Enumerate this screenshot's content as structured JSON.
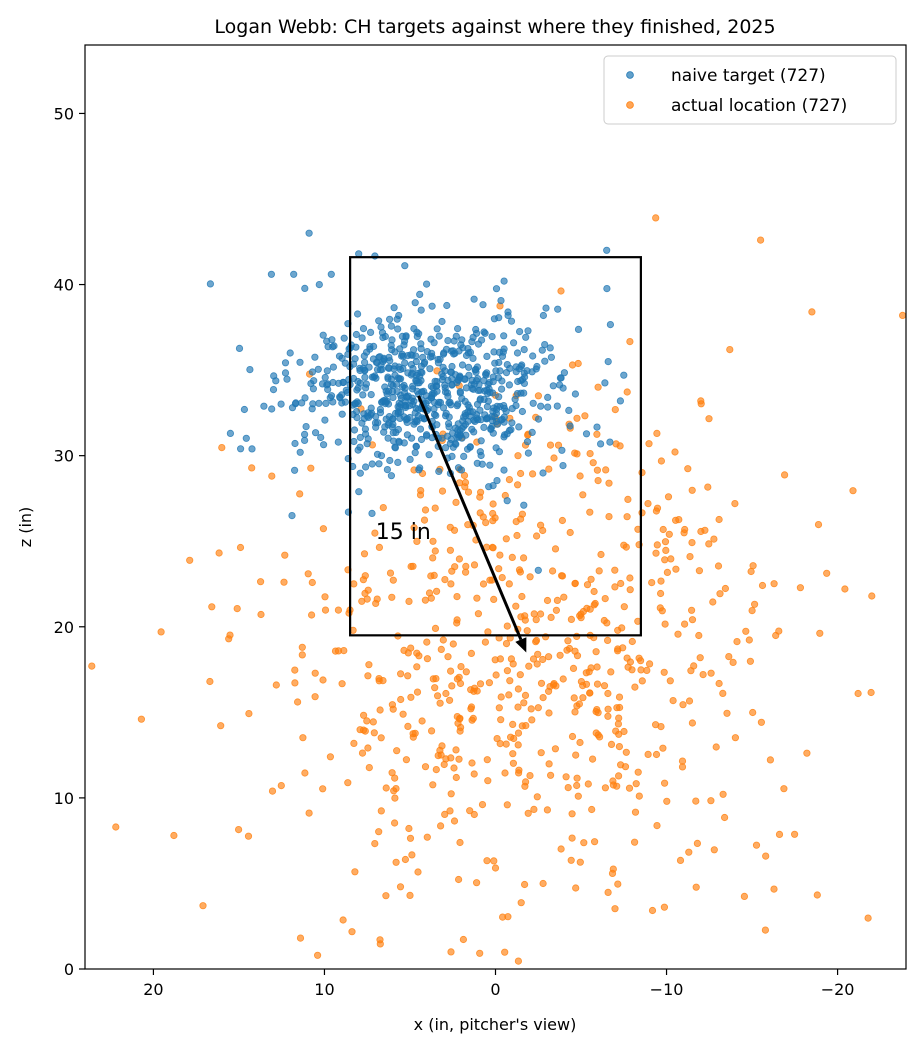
{
  "chart_data": {
    "type": "scatter",
    "title": "Logan Webb: CH targets against where they finished, 2025",
    "xlabel": "x (in, pitcher's view)",
    "ylabel": "z (in)",
    "xlim": [
      24,
      -24
    ],
    "ylim": [
      0,
      54
    ],
    "x_reversed": true,
    "xticks": [
      20,
      10,
      0,
      -10,
      -20
    ],
    "yticks": [
      0,
      10,
      20,
      30,
      40,
      50
    ],
    "xtick_labels": [
      "20",
      "10",
      "0",
      "−10",
      "−20"
    ],
    "ytick_labels": [
      "0",
      "10",
      "20",
      "30",
      "40",
      "50"
    ],
    "grid": false,
    "legend_position": "top-right",
    "strike_zone": {
      "x": [
        8.5,
        -8.5
      ],
      "z": [
        19.5,
        41.6
      ]
    },
    "arrow": {
      "from": [
        4.5,
        33.5
      ],
      "to": [
        -1.8,
        18.5
      ],
      "label": "15 in",
      "label_at": [
        7,
        25.6
      ]
    },
    "series": [
      {
        "name": "naive target (727)",
        "color": "#1f77b4",
        "n": 727,
        "distribution": {
          "x_mean": 4.0,
          "x_sd": 3.8,
          "z_mean": 33.8,
          "z_sd": 2.3
        },
        "points_sample": [
          [
            10.9,
            43.0
          ],
          [
            8.0,
            41.8
          ],
          [
            -6.5,
            42.0
          ],
          [
            13.1,
            40.6
          ],
          [
            11.8,
            40.6
          ],
          [
            10.3,
            40.0
          ],
          [
            9.6,
            40.6
          ],
          [
            5.3,
            41.1
          ],
          [
            -0.5,
            40.2
          ],
          [
            15.5,
            31.3
          ],
          [
            14.9,
            30.4
          ],
          [
            11.9,
            26.5
          ],
          [
            8.6,
            26.7
          ],
          [
            -7.3,
            33.2
          ],
          [
            -7.5,
            34.7
          ],
          [
            -2.5,
            23.3
          ],
          [
            7.5,
            30.7
          ],
          [
            0.5,
            35.8
          ],
          [
            -1.9,
            37.3
          ]
        ]
      },
      {
        "name": "actual location (727)",
        "color": "#ff7f0e",
        "n": 727,
        "distribution": {
          "x_mean": -1.8,
          "x_sd": 7.5,
          "z_mean": 18.5,
          "z_sd": 7.8
        },
        "points_sample": [
          [
            23.6,
            17.7
          ],
          [
            22.2,
            8.3
          ],
          [
            20.7,
            14.6
          ],
          [
            18.8,
            7.8
          ],
          [
            17.1,
            3.7
          ],
          [
            16.7,
            16.8
          ],
          [
            15.6,
            19.3
          ],
          [
            10.4,
            0.8
          ],
          [
            2.6,
            1.0
          ],
          [
            -15.5,
            42.6
          ],
          [
            -18.5,
            38.4
          ],
          [
            -23.8,
            38.2
          ],
          [
            -15.8,
            6.6
          ],
          [
            -21.2,
            16.1
          ],
          [
            -22.0,
            21.8
          ],
          [
            -12.0,
            33.2
          ],
          [
            -13.7,
            36.2
          ],
          [
            -4.5,
            35.3
          ],
          [
            -6.0,
            34.0
          ],
          [
            0.0,
            5.9
          ],
          [
            5.0,
            4.3
          ]
        ]
      }
    ]
  }
}
